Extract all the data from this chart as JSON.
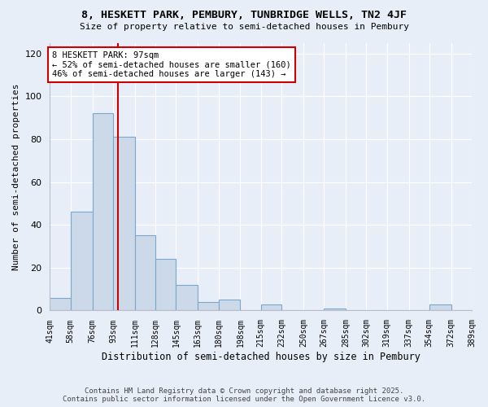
{
  "title": "8, HESKETT PARK, PEMBURY, TUNBRIDGE WELLS, TN2 4JF",
  "subtitle": "Size of property relative to semi-detached houses in Pembury",
  "xlabel": "Distribution of semi-detached houses by size in Pembury",
  "ylabel": "Number of semi-detached properties",
  "bar_color": "#ccd9e8",
  "bar_edge_color": "#7aa8cc",
  "background_color": "#e8eef8",
  "grid_color": "#ffffff",
  "bins": [
    41,
    58,
    76,
    93,
    111,
    128,
    145,
    163,
    180,
    198,
    215,
    232,
    250,
    267,
    285,
    302,
    319,
    337,
    354,
    372,
    389
  ],
  "bin_labels": [
    "41sqm",
    "58sqm",
    "76sqm",
    "93sqm",
    "111sqm",
    "128sqm",
    "145sqm",
    "163sqm",
    "180sqm",
    "198sqm",
    "215sqm",
    "232sqm",
    "250sqm",
    "267sqm",
    "285sqm",
    "302sqm",
    "319sqm",
    "337sqm",
    "354sqm",
    "372sqm",
    "389sqm"
  ],
  "counts": [
    6,
    46,
    92,
    81,
    35,
    24,
    12,
    4,
    5,
    0,
    3,
    0,
    0,
    1,
    0,
    0,
    0,
    0,
    3,
    0
  ],
  "property_size": 97,
  "vline_color": "#cc0000",
  "annotation_text": "8 HESKETT PARK: 97sqm\n← 52% of semi-detached houses are smaller (160)\n46% of semi-detached houses are larger (143) →",
  "annotation_box_color": "#ffffff",
  "annotation_box_edge": "#cc0000",
  "ylim": [
    0,
    125
  ],
  "yticks": [
    0,
    20,
    40,
    60,
    80,
    100,
    120
  ],
  "footer_line1": "Contains HM Land Registry data © Crown copyright and database right 2025.",
  "footer_line2": "Contains public sector information licensed under the Open Government Licence v3.0."
}
